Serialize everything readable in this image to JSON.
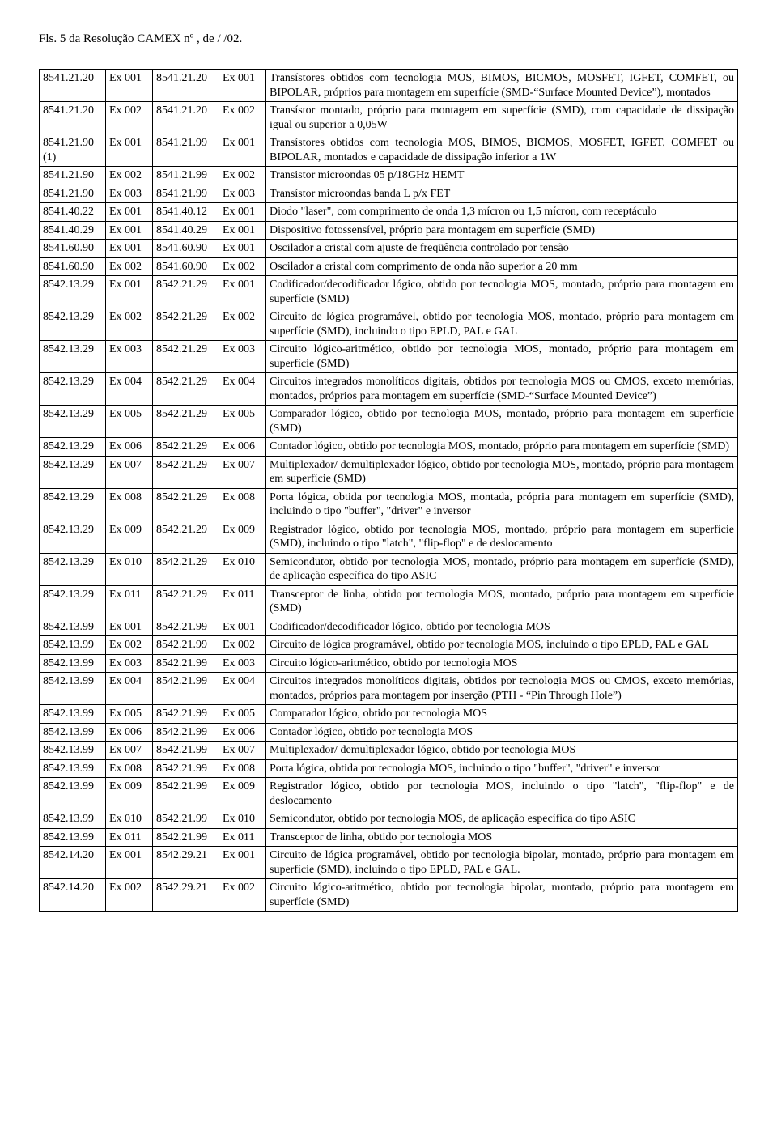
{
  "header": "Fls. 5 da Resolução CAMEX nº      , de     /     /02.",
  "rows": [
    {
      "c1": "8541.21.20",
      "c2": "Ex 001",
      "c3": "8541.21.20",
      "c4": "Ex 001",
      "desc": "Transístores obtidos com tecnologia MOS, BIMOS, BICMOS, MOSFET, IGFET, COMFET, ou BIPOLAR, próprios para montagem em superfície (SMD-“Surface Mounted Device”), montados"
    },
    {
      "c1": "8541.21.20",
      "c2": "Ex 002",
      "c3": "8541.21.20",
      "c4": "Ex 002",
      "desc": "Transístor montado, próprio para montagem em superfície (SMD), com capacidade de dissipação igual ou superior a 0,05W"
    },
    {
      "c1": "8541.21.90 (1)",
      "c2": "Ex 001",
      "c3": "8541.21.99",
      "c4": "Ex 001",
      "desc": "Transístores obtidos com tecnologia MOS, BIMOS, BICMOS, MOSFET, IGFET, COMFET ou BIPOLAR, montados e capacidade de dissipação inferior a 1W"
    },
    {
      "c1": "8541.21.90",
      "c2": "Ex 002",
      "c3": "8541.21.99",
      "c4": "Ex 002",
      "desc": "Transistor microondas 05 p/18GHz HEMT"
    },
    {
      "c1": "8541.21.90",
      "c2": "Ex 003",
      "c3": "8541.21.99",
      "c4": "Ex 003",
      "desc": "Transístor microondas banda L p/x FET"
    },
    {
      "c1": "8541.40.22",
      "c2": "Ex 001",
      "c3": "8541.40.12",
      "c4": "Ex 001",
      "desc": "Diodo \"laser\", com comprimento de onda 1,3 mícron ou 1,5 mícron, com receptáculo"
    },
    {
      "c1": "8541.40.29",
      "c2": "Ex 001",
      "c3": "8541.40.29",
      "c4": "Ex 001",
      "desc": "Dispositivo fotossensível, próprio para montagem em superfície (SMD)"
    },
    {
      "c1": "8541.60.90",
      "c2": "Ex 001",
      "c3": "8541.60.90",
      "c4": "Ex 001",
      "desc": "Oscilador a cristal com ajuste de freqüência controlado por tensão"
    },
    {
      "c1": "8541.60.90",
      "c2": "Ex 002",
      "c3": "8541.60.90",
      "c4": "Ex 002",
      "desc": "Oscilador a cristal com comprimento de onda não superior a 20 mm"
    },
    {
      "c1": "8542.13.29",
      "c2": "Ex 001",
      "c3": "8542.21.29",
      "c4": "Ex 001",
      "desc": "Codificador/decodificador lógico, obtido por tecnologia MOS, montado, próprio para montagem em superfície (SMD)"
    },
    {
      "c1": "8542.13.29",
      "c2": "Ex 002",
      "c3": "8542.21.29",
      "c4": "Ex 002",
      "desc": "Circuito de lógica programável, obtido por tecnologia MOS, montado, próprio para montagem em superfície (SMD), incluindo o tipo EPLD, PAL e GAL"
    },
    {
      "c1": "8542.13.29",
      "c2": "Ex 003",
      "c3": "8542.21.29",
      "c4": "Ex 003",
      "desc": "Circuito lógico-aritmético, obtido por tecnologia MOS,  montado, próprio para montagem em superfície (SMD)"
    },
    {
      "c1": "8542.13.29",
      "c2": "Ex 004",
      "c3": "8542.21.29",
      "c4": "Ex 004",
      "desc": "Circuitos integrados monolíticos digitais, obtidos por tecnologia MOS ou CMOS, exceto memórias, montados, próprios para montagem em superfície (SMD-“Surface Mounted Device”)"
    },
    {
      "c1": "8542.13.29",
      "c2": "Ex 005",
      "c3": "8542.21.29",
      "c4": "Ex 005",
      "desc": "Comparador lógico, obtido por tecnologia MOS, montado, próprio para montagem em superfície (SMD)"
    },
    {
      "c1": "8542.13.29",
      "c2": "Ex 006",
      "c3": "8542.21.29",
      "c4": "Ex 006",
      "desc": "Contador lógico, obtido por tecnologia MOS, montado, próprio para montagem em superfície (SMD)"
    },
    {
      "c1": "8542.13.29",
      "c2": "Ex 007",
      "c3": "8542.21.29",
      "c4": "Ex 007",
      "desc": "Multiplexador/ demultiplexador lógico, obtido por tecnologia MOS, montado, próprio para montagem em superfície (SMD)"
    },
    {
      "c1": "8542.13.29",
      "c2": "Ex 008",
      "c3": "8542.21.29",
      "c4": "Ex 008",
      "desc": "Porta lógica, obtida por tecnologia MOS, montada, própria para montagem em superfície (SMD), incluindo o tipo \"buffer\", \"driver\" e inversor"
    },
    {
      "c1": "8542.13.29",
      "c2": "Ex 009",
      "c3": "8542.21.29",
      "c4": "Ex 009",
      "desc": "Registrador lógico, obtido por tecnologia MOS, montado, próprio para montagem em superfície (SMD), incluindo o tipo \"latch\", \"flip-flop\" e de deslocamento"
    },
    {
      "c1": "8542.13.29",
      "c2": "Ex 010",
      "c3": "8542.21.29",
      "c4": "Ex 010",
      "desc": "Semicondutor, obtido por tecnologia MOS, montado, próprio para montagem em superfície (SMD), de aplicação específica do tipo ASIC"
    },
    {
      "c1": "8542.13.29",
      "c2": "Ex 011",
      "c3": "8542.21.29",
      "c4": "Ex 011",
      "desc": "Transceptor de linha, obtido por tecnologia MOS, montado, próprio para montagem em superfície (SMD)"
    },
    {
      "c1": "8542.13.99",
      "c2": "Ex 001",
      "c3": "8542.21.99",
      "c4": "Ex 001",
      "desc": "Codificador/decodificador lógico, obtido por tecnologia MOS"
    },
    {
      "c1": "8542.13.99",
      "c2": "Ex 002",
      "c3": "8542.21.99",
      "c4": "Ex 002",
      "desc": "Circuito de lógica programável, obtido por tecnologia MOS, incluindo o tipo EPLD, PAL e GAL"
    },
    {
      "c1": "8542.13.99",
      "c2": "Ex 003",
      "c3": "8542.21.99",
      "c4": "Ex 003",
      "desc": "Circuito lógico-aritmético, obtido por tecnologia MOS"
    },
    {
      "c1": "8542.13.99",
      "c2": "Ex 004",
      "c3": "8542.21.99",
      "c4": "Ex 004",
      "desc": "Circuitos integrados monolíticos digitais, obtidos por tecnologia MOS ou CMOS, exceto memórias, montados, próprios para montagem por inserção (PTH - “Pin Through Hole”)"
    },
    {
      "c1": "8542.13.99",
      "c2": "Ex 005",
      "c3": "8542.21.99",
      "c4": "Ex 005",
      "desc": "Comparador lógico, obtido por tecnologia MOS"
    },
    {
      "c1": "8542.13.99",
      "c2": "Ex 006",
      "c3": "8542.21.99",
      "c4": "Ex 006",
      "desc": "Contador lógico, obtido por tecnologia MOS"
    },
    {
      "c1": "8542.13.99",
      "c2": "Ex 007",
      "c3": "8542.21.99",
      "c4": "Ex 007",
      "desc": "Multiplexador/ demultiplexador lógico, obtido por tecnologia MOS"
    },
    {
      "c1": "8542.13.99",
      "c2": "Ex 008",
      "c3": "8542.21.99",
      "c4": "Ex 008",
      "desc": "Porta lógica, obtida por tecnologia MOS, incluindo o tipo \"buffer\", \"driver\" e inversor"
    },
    {
      "c1": "8542.13.99",
      "c2": "Ex 009",
      "c3": "8542.21.99",
      "c4": "Ex 009",
      "desc": "Registrador lógico, obtido por tecnologia MOS, incluindo o tipo \"latch\", \"flip-flop\" e de deslocamento"
    },
    {
      "c1": "8542.13.99",
      "c2": "Ex 010",
      "c3": "8542.21.99",
      "c4": "Ex 010",
      "desc": "Semicondutor, obtido por tecnologia MOS, de aplicação específica do tipo ASIC"
    },
    {
      "c1": "8542.13.99",
      "c2": "Ex 011",
      "c3": "8542.21.99",
      "c4": "Ex 011",
      "desc": "Transceptor de linha, obtido por tecnologia MOS"
    },
    {
      "c1": "8542.14.20",
      "c2": "Ex 001",
      "c3": "8542.29.21",
      "c4": "Ex 001",
      "desc": "Circuito de lógica programável, obtido por tecnologia bipolar, montado, próprio para montagem em superfície (SMD), incluindo o tipo EPLD, PAL e GAL."
    },
    {
      "c1": "8542.14.20",
      "c2": "Ex 002",
      "c3": "8542.29.21",
      "c4": "Ex 002",
      "desc": "Circuito lógico-aritmético, obtido por tecnologia bipolar, montado, próprio para montagem em superfície (SMD)"
    }
  ]
}
